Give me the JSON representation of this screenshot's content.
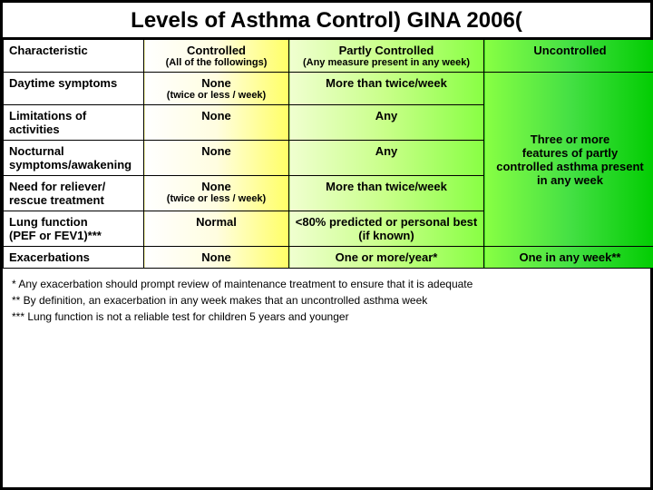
{
  "title": "Levels  of Asthma Control) GINA 2006(",
  "header": {
    "characteristic": "Characteristic",
    "controlled": "Controlled",
    "controlled_sub": "(All of the followings)",
    "partly": "Partly Controlled",
    "partly_sub": "(Any measure present in any week)",
    "uncontrolled": "Uncontrolled"
  },
  "rows": {
    "daytime": {
      "label": "Daytime symptoms",
      "ctrl_main": "None",
      "ctrl_sub": "(twice or less / week)",
      "part": "More than twice/week"
    },
    "limit": {
      "label": "Limitations of activities",
      "ctrl": "None",
      "part": "Any"
    },
    "noct": {
      "label": "Nocturnal symptoms/awakening",
      "ctrl": "None",
      "part": "Any"
    },
    "relief": {
      "label": "Need for reliever/ rescue treatment",
      "ctrl_main": "None",
      "ctrl_sub": "(twice or less / week)",
      "part": "More than twice/week"
    },
    "lung": {
      "label": "Lung function\n(PEF or FEV1)***",
      "ctrl": "Normal",
      "part": "<80% predicted or personal best (if known)"
    },
    "exac": {
      "label": "Exacerbations",
      "ctrl": "None",
      "part": "One or more/year*",
      "unc": "One in any week**"
    }
  },
  "uncontrolled_merged": "Three or more\n features of partly\n controlled asthma present in any week",
  "footnotes": {
    "f1": "* Any exacerbation  should prompt review of maintenance treatment to ensure that it is adequate",
    "f2": "** By definition, an exacerbation in any week makes that an uncontrolled asthma week",
    "f3": "***  Lung  function  is not  a reliable test for children 5 years and younger"
  },
  "colors": {
    "border": "#000000",
    "controlled_grad_end": "#ffff66",
    "partly_grad_end": "#88ff44",
    "uncontrolled_grad_end": "#00cc00"
  }
}
